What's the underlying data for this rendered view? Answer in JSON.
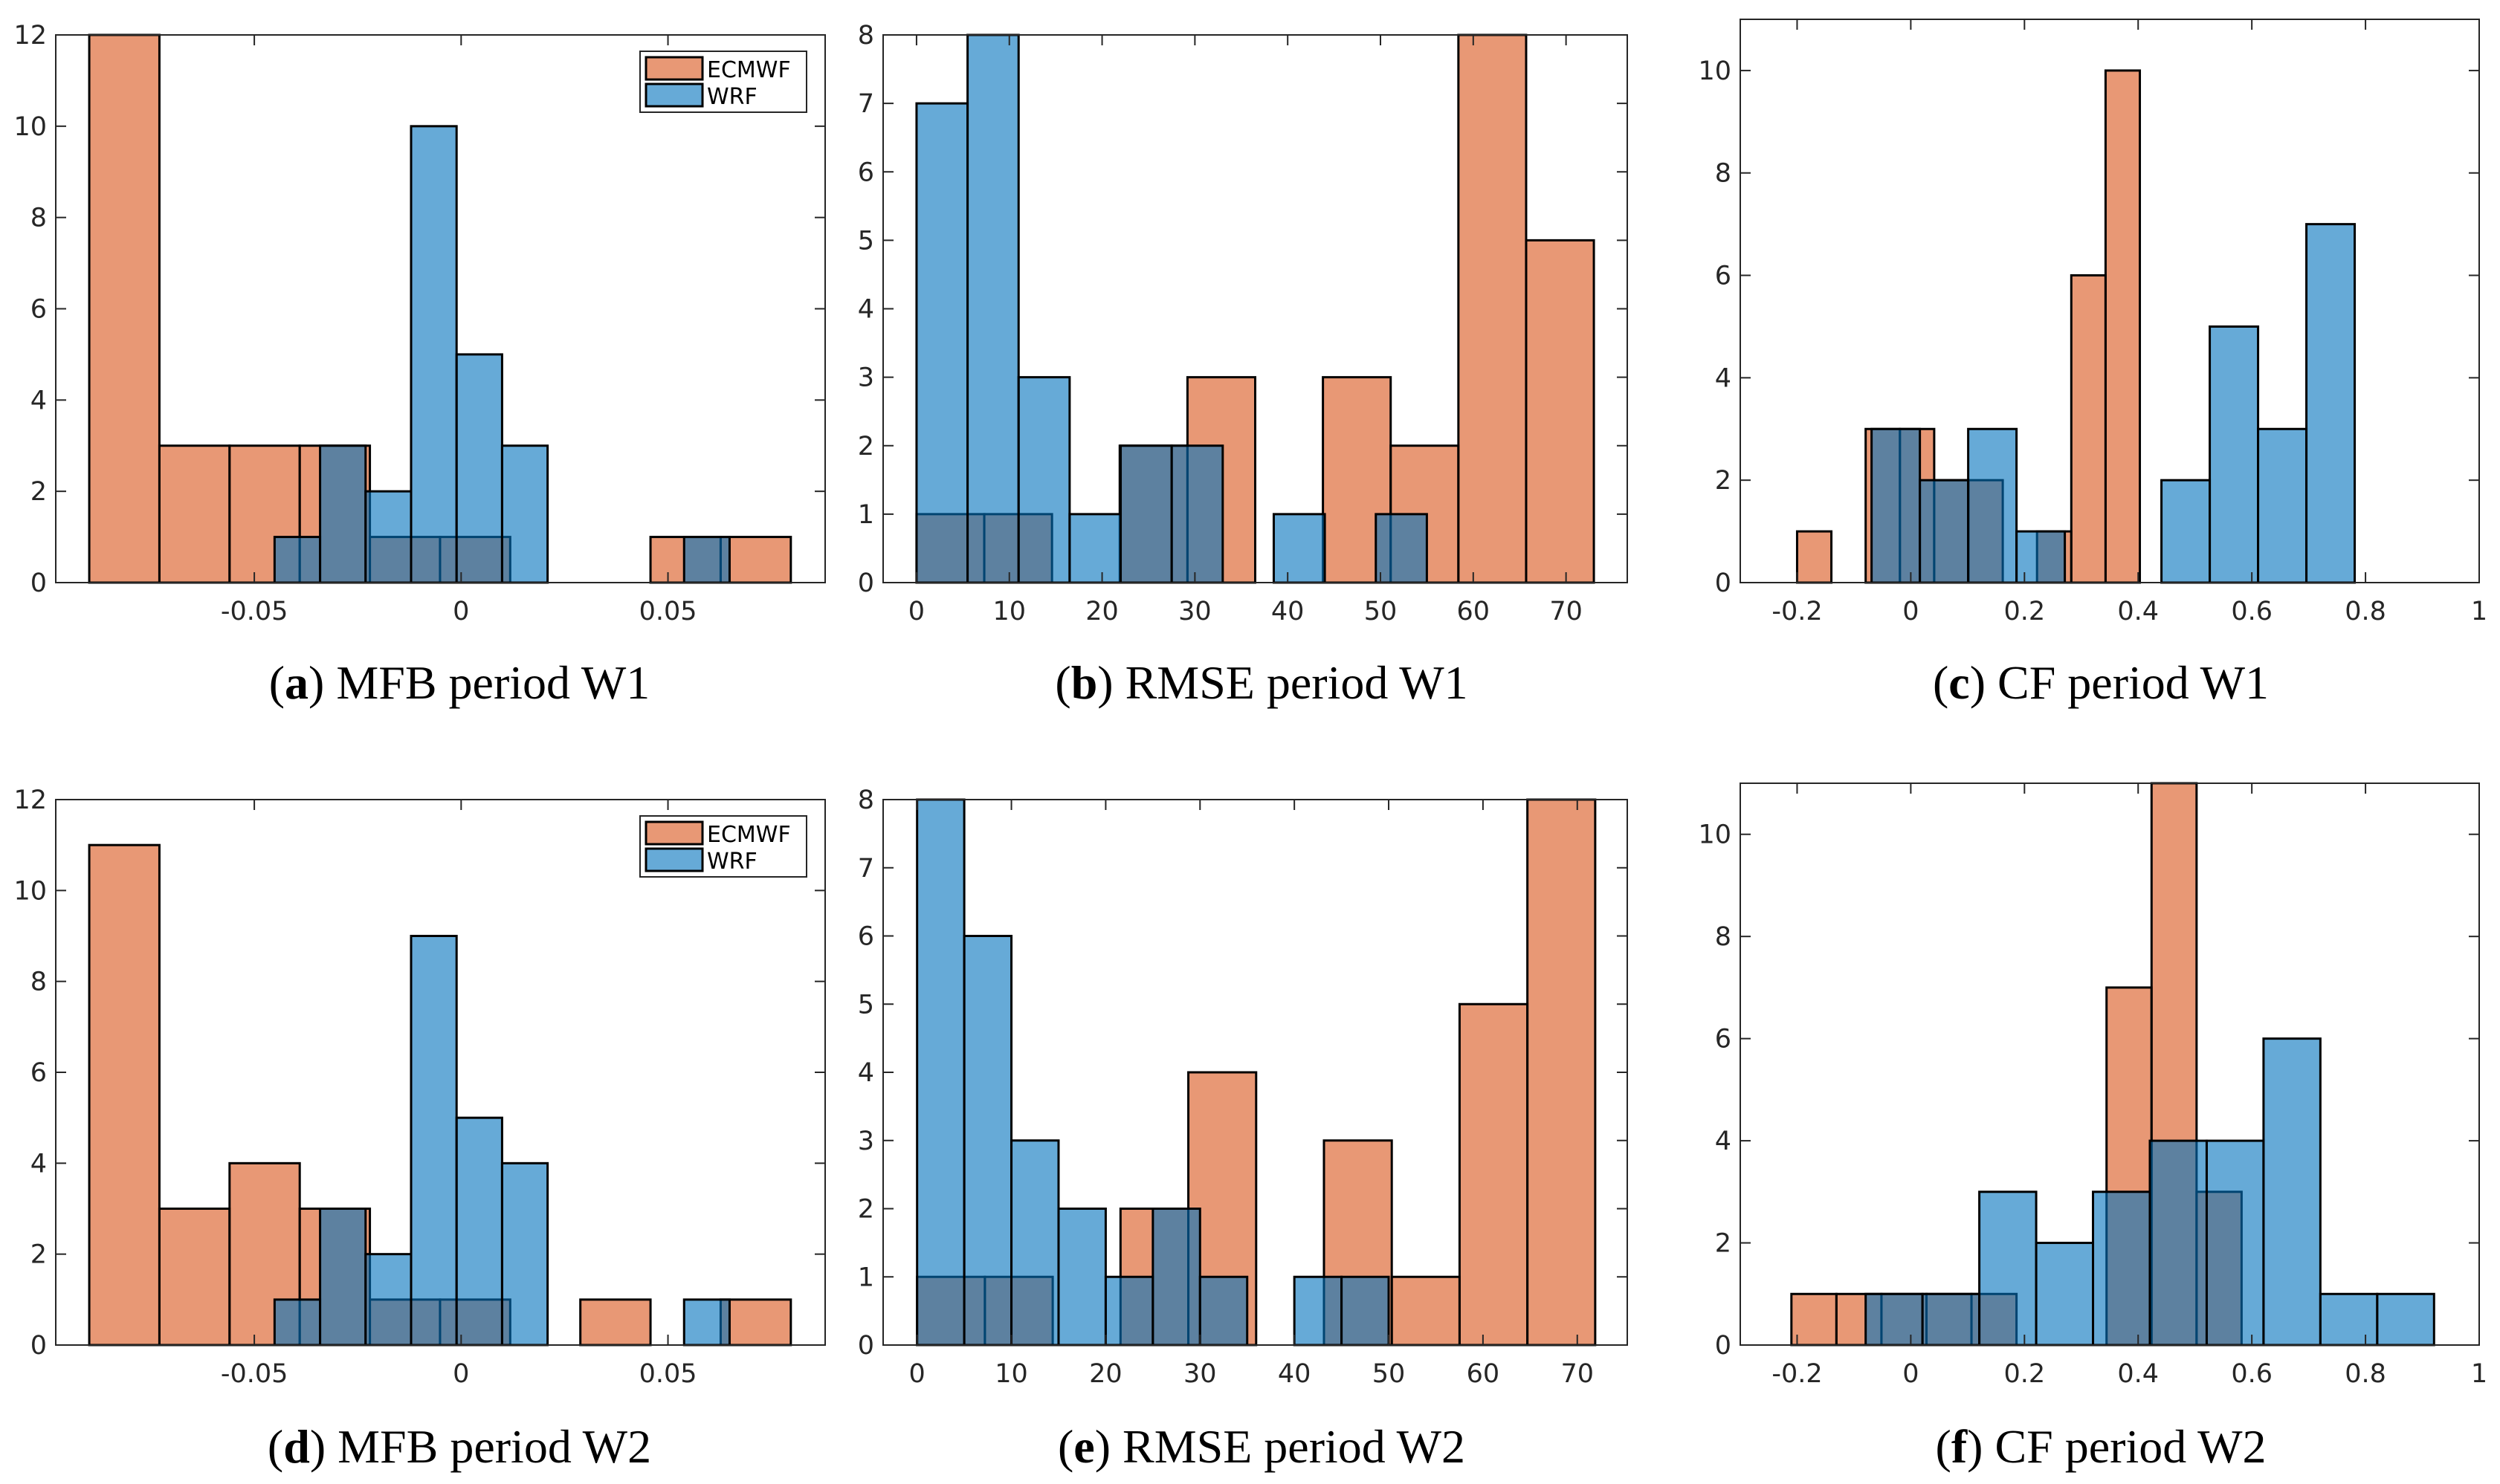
{
  "colors": {
    "ECMWF": "#D95319",
    "WRF": "#0072BD",
    "bar_opacity": 0.6,
    "edge": "#000000",
    "axis": "#262626"
  },
  "chart_data": [
    {
      "type": "bar",
      "histogram": true,
      "label": "a",
      "title": "MFB period W1",
      "xlim": [
        -0.098,
        0.088
      ],
      "ylim": [
        0,
        12
      ],
      "grid": false,
      "box": true,
      "xticks": [
        -0.05,
        0,
        0.05
      ],
      "xtick_labels": [
        "-0.05",
        "0",
        "0.05"
      ],
      "yticks": [
        0,
        2,
        4,
        6,
        8,
        10,
        12
      ],
      "ytick_labels": [
        "0",
        "2",
        "4",
        "6",
        "8",
        "10",
        "12"
      ],
      "legend": {
        "placement": "top-right",
        "entries": [
          "ECMWF",
          "WRF"
        ]
      },
      "series": [
        {
          "name": "ECMWF",
          "bin_start": -0.0899,
          "bin_width": 0.01696,
          "counts": [
            12,
            3,
            3,
            3,
            1,
            1,
            0,
            0,
            1,
            1
          ]
        },
        {
          "name": "WRF",
          "bin_start": -0.0451,
          "bin_width": 0.011,
          "counts": [
            1,
            3,
            2,
            10,
            5,
            3,
            0,
            0,
            0,
            1
          ]
        }
      ]
    },
    {
      "type": "bar",
      "histogram": true,
      "label": "b",
      "title": "RMSE period W1",
      "xlim": [
        -3.6,
        76.6
      ],
      "ylim": [
        0,
        8
      ],
      "grid": false,
      "box": true,
      "xticks": [
        0,
        10,
        20,
        30,
        40,
        50,
        60,
        70
      ],
      "xtick_labels": [
        "0",
        "10",
        "20",
        "30",
        "40",
        "50",
        "60",
        "70"
      ],
      "yticks": [
        0,
        1,
        2,
        3,
        4,
        5,
        6,
        7,
        8
      ],
      "ytick_labels": [
        "0",
        "1",
        "2",
        "3",
        "4",
        "5",
        "6",
        "7",
        "8"
      ],
      "series": [
        {
          "name": "ECMWF",
          "bin_start": 0,
          "bin_width": 7.3,
          "counts": [
            1,
            1,
            0,
            2,
            3,
            0,
            3,
            2,
            8,
            5
          ]
        },
        {
          "name": "WRF",
          "bin_start": 0,
          "bin_width": 5.5,
          "counts": [
            7,
            8,
            3,
            1,
            2,
            2,
            0,
            1,
            0,
            1
          ]
        }
      ]
    },
    {
      "type": "bar",
      "histogram": true,
      "label": "c",
      "title": "CF period W1",
      "xlim": [
        -0.3,
        1
      ],
      "ylim": [
        0,
        11
      ],
      "grid": false,
      "box": true,
      "xticks": [
        -0.2,
        0,
        0.2,
        0.4,
        0.6,
        0.8,
        1
      ],
      "xtick_labels": [
        "-0.2",
        "0",
        "0.2",
        "0.4",
        "0.6",
        "0.8",
        "1"
      ],
      "yticks": [
        0,
        2,
        4,
        6,
        8,
        10
      ],
      "ytick_labels": [
        "0",
        "2",
        "4",
        "6",
        "8",
        "10"
      ],
      "series": [
        {
          "name": "ECMWF",
          "bin_start": -0.2,
          "bin_width": 0.0603,
          "counts": [
            1,
            0,
            3,
            3,
            2,
            2,
            0,
            1,
            6,
            10
          ]
        },
        {
          "name": "WRF",
          "bin_start": -0.069,
          "bin_width": 0.085,
          "counts": [
            3,
            2,
            3,
            1,
            0,
            0,
            2,
            5,
            3,
            7
          ]
        }
      ]
    },
    {
      "type": "bar",
      "histogram": true,
      "label": "d",
      "title": "MFB period W2",
      "xlim": [
        -0.098,
        0.088
      ],
      "ylim": [
        0,
        12
      ],
      "grid": false,
      "box": true,
      "xticks": [
        -0.05,
        0,
        0.05
      ],
      "xtick_labels": [
        "-0.05",
        "0",
        "0.05"
      ],
      "yticks": [
        0,
        2,
        4,
        6,
        8,
        10,
        12
      ],
      "ytick_labels": [
        "0",
        "2",
        "4",
        "6",
        "8",
        "10",
        "12"
      ],
      "legend": {
        "placement": "top-right",
        "entries": [
          "ECMWF",
          "WRF"
        ]
      },
      "series": [
        {
          "name": "ECMWF",
          "bin_start": -0.0899,
          "bin_width": 0.01696,
          "counts": [
            11,
            3,
            4,
            3,
            1,
            1,
            0,
            1,
            0,
            1
          ]
        },
        {
          "name": "WRF",
          "bin_start": -0.0451,
          "bin_width": 0.011,
          "counts": [
            1,
            3,
            2,
            9,
            5,
            4,
            0,
            0,
            0,
            1
          ]
        }
      ]
    },
    {
      "type": "bar",
      "histogram": true,
      "label": "e",
      "title": "RMSE period W2",
      "xlim": [
        -3.6,
        75.3
      ],
      "ylim": [
        0,
        8
      ],
      "grid": false,
      "box": true,
      "xticks": [
        0,
        10,
        20,
        30,
        40,
        50,
        60,
        70
      ],
      "xtick_labels": [
        "0",
        "10",
        "20",
        "30",
        "40",
        "50",
        "60",
        "70"
      ],
      "yticks": [
        0,
        1,
        2,
        3,
        4,
        5,
        6,
        7,
        8
      ],
      "ytick_labels": [
        "0",
        "1",
        "2",
        "3",
        "4",
        "5",
        "6",
        "7",
        "8"
      ],
      "series": [
        {
          "name": "ECMWF",
          "bin_start": 0,
          "bin_width": 7.19,
          "counts": [
            1,
            1,
            0,
            2,
            4,
            0,
            3,
            1,
            5,
            8
          ]
        },
        {
          "name": "WRF",
          "bin_start": 0,
          "bin_width": 5.0,
          "counts": [
            8,
            6,
            3,
            2,
            1,
            2,
            1,
            0,
            1,
            1
          ]
        }
      ]
    },
    {
      "type": "bar",
      "histogram": true,
      "label": "f",
      "title": "CF period W2",
      "xlim": [
        -0.3,
        1
      ],
      "ylim": [
        0,
        11
      ],
      "grid": false,
      "box": true,
      "xticks": [
        -0.2,
        0,
        0.2,
        0.4,
        0.6,
        0.8,
        1
      ],
      "xtick_labels": [
        "-0.2",
        "0",
        "0.2",
        "0.4",
        "0.6",
        "0.8",
        "1"
      ],
      "yticks": [
        0,
        2,
        4,
        6,
        8,
        10
      ],
      "ytick_labels": [
        "0",
        "2",
        "4",
        "6",
        "8",
        "10"
      ],
      "series": [
        {
          "name": "ECMWF",
          "bin_start": -0.21,
          "bin_width": 0.0792,
          "counts": [
            1,
            1,
            1,
            1,
            1,
            0,
            0,
            7,
            11,
            3
          ]
        },
        {
          "name": "WRF",
          "bin_start": -0.0794,
          "bin_width": 0.1,
          "counts": [
            1,
            1,
            3,
            2,
            3,
            4,
            4,
            6,
            1,
            1
          ]
        }
      ]
    }
  ]
}
